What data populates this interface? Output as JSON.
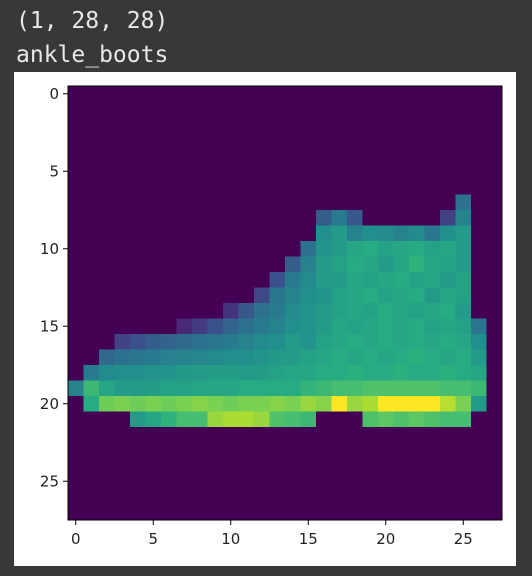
{
  "output": {
    "shape_text": "(1, 28, 28)",
    "label_text": "ankle_boots"
  },
  "colors": {
    "page_background": "#383838",
    "figure_background": "#ffffff",
    "output_text": "#e8e8e8",
    "colormap": "viridis"
  },
  "chart_data": {
    "type": "heatmap",
    "title": "",
    "xlabel": "",
    "ylabel": "",
    "xlim": [
      -0.5,
      27.5
    ],
    "ylim": [
      27.5,
      -0.5
    ],
    "grid": false,
    "x_ticks": [
      "0",
      "5",
      "10",
      "15",
      "20",
      "25"
    ],
    "y_ticks": [
      "0",
      "5",
      "10",
      "15",
      "20",
      "25"
    ],
    "value_range": [
      0,
      1
    ],
    "rows": [
      [
        0,
        0,
        0,
        0,
        0,
        0,
        0,
        0,
        0,
        0,
        0,
        0,
        0,
        0,
        0,
        0,
        0,
        0,
        0,
        0,
        0,
        0,
        0,
        0,
        0,
        0,
        0,
        0
      ],
      [
        0,
        0,
        0,
        0,
        0,
        0,
        0,
        0,
        0,
        0,
        0,
        0,
        0,
        0,
        0,
        0,
        0,
        0,
        0,
        0,
        0,
        0,
        0,
        0,
        0,
        0,
        0,
        0
      ],
      [
        0,
        0,
        0,
        0,
        0,
        0,
        0,
        0,
        0,
        0,
        0,
        0,
        0,
        0,
        0,
        0,
        0,
        0,
        0,
        0,
        0,
        0,
        0,
        0,
        0,
        0,
        0,
        0
      ],
      [
        0,
        0,
        0,
        0,
        0,
        0,
        0,
        0,
        0,
        0,
        0,
        0,
        0,
        0,
        0,
        0,
        0,
        0,
        0,
        0,
        0,
        0,
        0,
        0,
        0,
        0,
        0,
        0
      ],
      [
        0,
        0,
        0,
        0,
        0,
        0,
        0,
        0,
        0,
        0,
        0,
        0,
        0,
        0,
        0,
        0,
        0,
        0,
        0,
        0,
        0,
        0,
        0,
        0,
        0,
        0,
        0,
        0
      ],
      [
        0,
        0,
        0,
        0,
        0,
        0,
        0,
        0,
        0,
        0,
        0,
        0,
        0,
        0,
        0,
        0,
        0,
        0,
        0,
        0,
        0,
        0,
        0,
        0,
        0,
        0,
        0,
        0
      ],
      [
        0,
        0,
        0,
        0,
        0,
        0,
        0,
        0,
        0,
        0,
        0,
        0,
        0,
        0,
        0,
        0,
        0,
        0,
        0,
        0,
        0,
        0,
        0,
        0,
        0,
        0,
        0,
        0
      ],
      [
        0,
        0,
        0,
        0,
        0,
        0,
        0,
        0,
        0,
        0,
        0,
        0,
        0,
        0,
        0,
        0,
        0,
        0,
        0,
        0,
        0,
        0,
        0,
        0,
        0,
        0.38,
        0,
        0
      ],
      [
        0,
        0,
        0,
        0,
        0,
        0,
        0,
        0,
        0,
        0,
        0,
        0,
        0,
        0,
        0,
        0,
        0.3,
        0.42,
        0.28,
        0,
        0,
        0,
        0,
        0,
        0.2,
        0.45,
        0,
        0
      ],
      [
        0,
        0,
        0,
        0,
        0,
        0,
        0,
        0,
        0,
        0,
        0,
        0,
        0,
        0,
        0,
        0,
        0.5,
        0.55,
        0.45,
        0.5,
        0.48,
        0.45,
        0.48,
        0.4,
        0.5,
        0.55,
        0,
        0
      ],
      [
        0,
        0,
        0,
        0,
        0,
        0,
        0,
        0,
        0,
        0,
        0,
        0,
        0,
        0,
        0,
        0.38,
        0.52,
        0.55,
        0.6,
        0.62,
        0.58,
        0.6,
        0.62,
        0.58,
        0.6,
        0.55,
        0,
        0
      ],
      [
        0,
        0,
        0,
        0,
        0,
        0,
        0,
        0,
        0,
        0,
        0,
        0,
        0,
        0,
        0.3,
        0.45,
        0.55,
        0.58,
        0.62,
        0.6,
        0.55,
        0.6,
        0.65,
        0.6,
        0.58,
        0.55,
        0,
        0
      ],
      [
        0,
        0,
        0,
        0,
        0,
        0,
        0,
        0,
        0,
        0,
        0,
        0,
        0,
        0.25,
        0.42,
        0.48,
        0.55,
        0.55,
        0.6,
        0.58,
        0.6,
        0.62,
        0.58,
        0.6,
        0.55,
        0.58,
        0,
        0
      ],
      [
        0,
        0,
        0,
        0,
        0,
        0,
        0,
        0,
        0,
        0,
        0,
        0,
        0.22,
        0.4,
        0.45,
        0.5,
        0.52,
        0.58,
        0.6,
        0.62,
        0.58,
        0.6,
        0.62,
        0.55,
        0.6,
        0.58,
        0,
        0
      ],
      [
        0,
        0,
        0,
        0,
        0,
        0,
        0,
        0,
        0,
        0,
        0.15,
        0.28,
        0.38,
        0.42,
        0.48,
        0.52,
        0.55,
        0.58,
        0.6,
        0.58,
        0.62,
        0.6,
        0.58,
        0.6,
        0.62,
        0.55,
        0,
        0
      ],
      [
        0,
        0,
        0,
        0,
        0,
        0,
        0,
        0.12,
        0.18,
        0.25,
        0.32,
        0.38,
        0.42,
        0.45,
        0.5,
        0.52,
        0.55,
        0.6,
        0.58,
        0.6,
        0.62,
        0.6,
        0.62,
        0.58,
        0.6,
        0.58,
        0.4,
        0
      ],
      [
        0,
        0,
        0,
        0.2,
        0.25,
        0.3,
        0.32,
        0.35,
        0.38,
        0.4,
        0.42,
        0.45,
        0.48,
        0.5,
        0.55,
        0.52,
        0.58,
        0.6,
        0.62,
        0.6,
        0.62,
        0.6,
        0.62,
        0.6,
        0.62,
        0.6,
        0.5,
        0
      ],
      [
        0,
        0,
        0.35,
        0.38,
        0.4,
        0.42,
        0.44,
        0.45,
        0.46,
        0.48,
        0.5,
        0.5,
        0.52,
        0.54,
        0.55,
        0.58,
        0.6,
        0.62,
        0.6,
        0.62,
        0.6,
        0.62,
        0.64,
        0.62,
        0.6,
        0.62,
        0.55,
        0
      ],
      [
        0,
        0.42,
        0.48,
        0.5,
        0.5,
        0.52,
        0.52,
        0.54,
        0.55,
        0.56,
        0.56,
        0.55,
        0.56,
        0.58,
        0.6,
        0.6,
        0.62,
        0.62,
        0.64,
        0.62,
        0.62,
        0.64,
        0.62,
        0.62,
        0.64,
        0.62,
        0.6,
        0
      ],
      [
        0.45,
        0.68,
        0.6,
        0.55,
        0.55,
        0.56,
        0.58,
        0.58,
        0.6,
        0.6,
        0.6,
        0.62,
        0.62,
        0.62,
        0.62,
        0.66,
        0.68,
        0.7,
        0.7,
        0.72,
        0.72,
        0.72,
        0.72,
        0.72,
        0.7,
        0.7,
        0.68,
        0
      ],
      [
        0,
        0.62,
        0.78,
        0.8,
        0.78,
        0.8,
        0.78,
        0.8,
        0.82,
        0.8,
        0.78,
        0.8,
        0.8,
        0.82,
        0.8,
        0.85,
        0.82,
        1.0,
        0.85,
        0.88,
        1.0,
        1.0,
        1.0,
        1.0,
        0.9,
        0.8,
        0.55,
        0
      ],
      [
        0,
        0,
        0,
        0,
        0.55,
        0.6,
        0.65,
        0.7,
        0.7,
        0.85,
        0.88,
        0.88,
        0.85,
        0.72,
        0.7,
        0.68,
        0,
        0,
        0,
        0.72,
        0.75,
        0.72,
        0.75,
        0.72,
        0.7,
        0.7,
        0,
        0
      ],
      [
        0,
        0,
        0,
        0,
        0,
        0,
        0,
        0,
        0,
        0,
        0,
        0,
        0,
        0,
        0,
        0,
        0,
        0,
        0,
        0,
        0,
        0,
        0,
        0,
        0,
        0,
        0,
        0
      ],
      [
        0,
        0,
        0,
        0,
        0,
        0,
        0,
        0,
        0,
        0,
        0,
        0,
        0,
        0,
        0,
        0,
        0,
        0,
        0,
        0,
        0,
        0,
        0,
        0,
        0,
        0,
        0,
        0
      ],
      [
        0,
        0,
        0,
        0,
        0,
        0,
        0,
        0,
        0,
        0,
        0,
        0,
        0,
        0,
        0,
        0,
        0,
        0,
        0,
        0,
        0,
        0,
        0,
        0,
        0,
        0,
        0,
        0
      ],
      [
        0,
        0,
        0,
        0,
        0,
        0,
        0,
        0,
        0,
        0,
        0,
        0,
        0,
        0,
        0,
        0,
        0,
        0,
        0,
        0,
        0,
        0,
        0,
        0,
        0,
        0,
        0,
        0
      ],
      [
        0,
        0,
        0,
        0,
        0,
        0,
        0,
        0,
        0,
        0,
        0,
        0,
        0,
        0,
        0,
        0,
        0,
        0,
        0,
        0,
        0,
        0,
        0,
        0,
        0,
        0,
        0,
        0
      ],
      [
        0,
        0,
        0,
        0,
        0,
        0,
        0,
        0,
        0,
        0,
        0,
        0,
        0,
        0,
        0,
        0,
        0,
        0,
        0,
        0,
        0,
        0,
        0,
        0,
        0,
        0,
        0,
        0
      ]
    ]
  }
}
